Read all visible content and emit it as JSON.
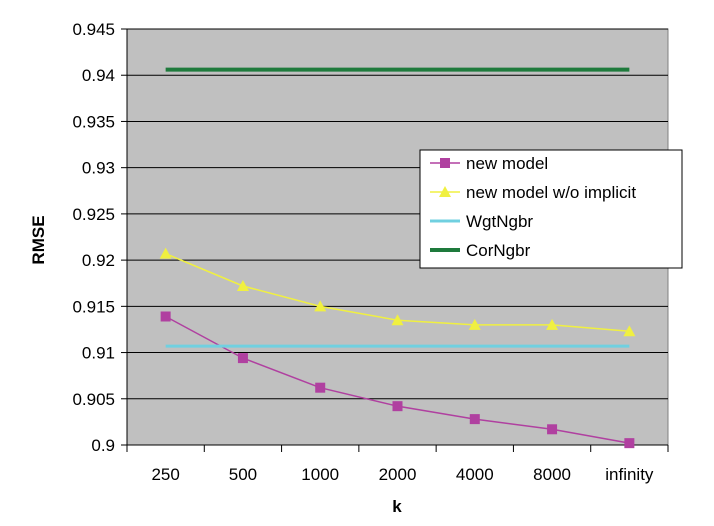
{
  "chart_data": {
    "type": "line",
    "title": "",
    "xlabel": "k",
    "ylabel": "RMSE",
    "categories": [
      "250",
      "500",
      "1000",
      "2000",
      "4000",
      "8000",
      "infinity"
    ],
    "ylim": [
      0.9,
      0.945
    ],
    "yticks": [
      "0.9",
      "0.905",
      "0.91",
      "0.915",
      "0.92",
      "0.925",
      "0.93",
      "0.935",
      "0.94",
      "0.945"
    ],
    "grid": true,
    "plot_background": "#c0c0c0",
    "legend_position": "right",
    "series": [
      {
        "name": "new model",
        "color": "#b040a0",
        "marker": "square",
        "values": [
          0.9139,
          0.9094,
          0.9062,
          0.9042,
          0.9028,
          0.9017,
          0.9002
        ]
      },
      {
        "name": "new model w/o implicit",
        "color": "#f0f040",
        "marker": "triangle",
        "values": [
          0.9207,
          0.9172,
          0.915,
          0.9135,
          0.913,
          0.913,
          0.9123
        ]
      },
      {
        "name": "WgtNgbr",
        "color": "#70d0e0",
        "marker": "none",
        "values": [
          0.9107,
          0.9107,
          0.9107,
          0.9107,
          0.9107,
          0.9107,
          0.9107
        ]
      },
      {
        "name": "CorNgbr",
        "color": "#1e7a3c",
        "marker": "none",
        "values": [
          0.9406,
          0.9406,
          0.9406,
          0.9406,
          0.9406,
          0.9406,
          0.9406
        ]
      }
    ]
  }
}
